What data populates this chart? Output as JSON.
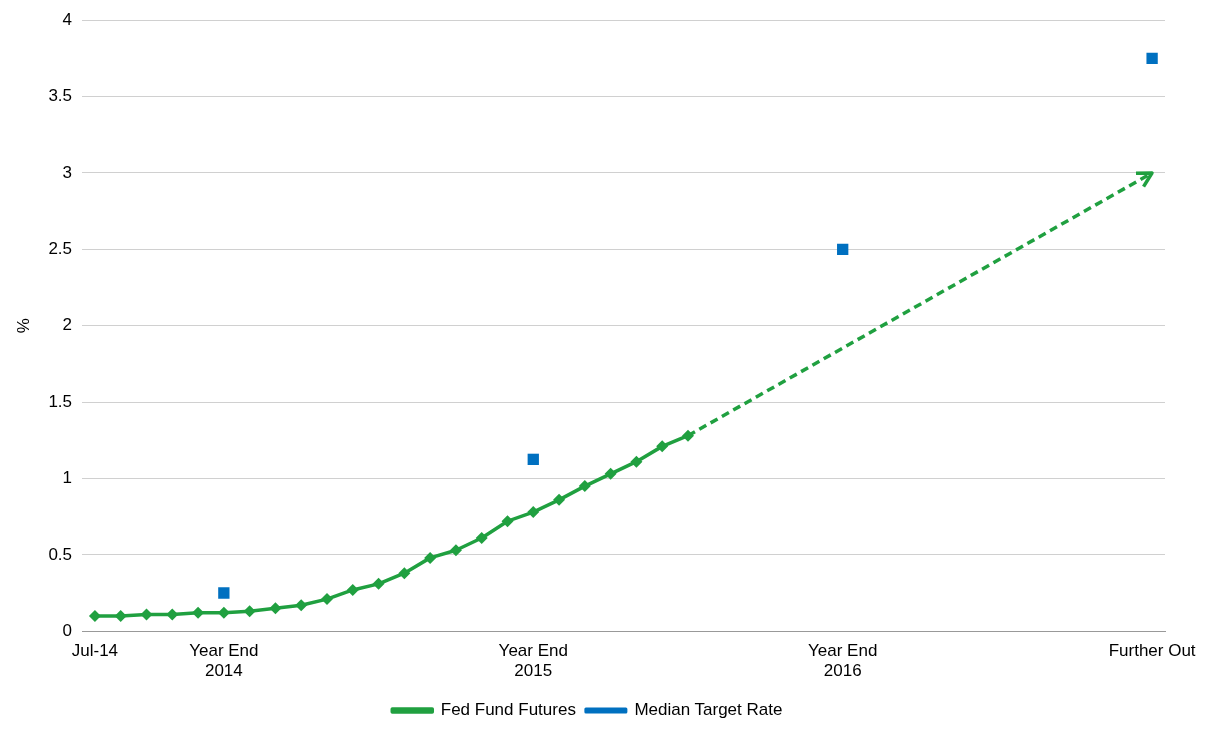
{
  "chart_data": {
    "type": "line",
    "ylabel": "%",
    "categories": [
      "Jul-14",
      null,
      null,
      null,
      null,
      "Year End\n2014",
      null,
      null,
      null,
      null,
      null,
      null,
      null,
      null,
      null,
      null,
      null,
      "Year End\n2015",
      null,
      null,
      null,
      null,
      null,
      null,
      null,
      null,
      null,
      null,
      null,
      "Year End\n2016",
      null,
      null,
      null,
      null,
      null,
      null,
      null,
      null,
      null,
      null,
      null,
      "Further Out"
    ],
    "series": [
      {
        "line_style": "dashed",
        "marker": "none",
        "color": "#20a040",
        "values": [
          null,
          null,
          null,
          null,
          null,
          null,
          null,
          null,
          null,
          null,
          null,
          null,
          null,
          null,
          null,
          null,
          null,
          null,
          null,
          null,
          null,
          null,
          null,
          1.28,
          null,
          null,
          null,
          null,
          null,
          null,
          null,
          null,
          null,
          null,
          null,
          null,
          null,
          null,
          null,
          null,
          null,
          3.0
        ]
      },
      {
        "name": "Fed Fund Futures",
        "type": "line",
        "marker": "diamond",
        "color": "#20a040",
        "values": [
          0.1,
          0.1,
          0.11,
          0.11,
          0.12,
          0.12,
          0.13,
          0.15,
          0.17,
          0.21,
          0.27,
          0.31,
          0.38,
          0.48,
          0.53,
          0.61,
          0.72,
          0.78,
          0.86,
          0.95,
          1.03,
          1.11,
          1.21,
          1.28,
          null,
          null,
          null,
          null,
          null,
          null,
          null,
          null,
          null,
          null,
          null,
          null,
          null,
          null,
          null,
          null,
          null,
          null
        ]
      },
      {
        "name": "Median Target Rate",
        "type": "scatter",
        "marker": "square",
        "color": "#0070c0",
        "values": [
          null,
          null,
          null,
          null,
          null,
          0.25,
          null,
          null,
          null,
          null,
          null,
          null,
          null,
          null,
          null,
          null,
          null,
          1.125,
          null,
          null,
          null,
          null,
          null,
          null,
          null,
          null,
          null,
          null,
          null,
          2.5,
          null,
          null,
          null,
          null,
          null,
          null,
          null,
          null,
          null,
          null,
          null,
          3.75
        ]
      }
    ],
    "ylim": [
      0,
      4
    ],
    "yticks": [
      0,
      0.5,
      1,
      1.5,
      2,
      2.5,
      3,
      3.5,
      4
    ],
    "grid": "y",
    "legend": "bottom"
  }
}
